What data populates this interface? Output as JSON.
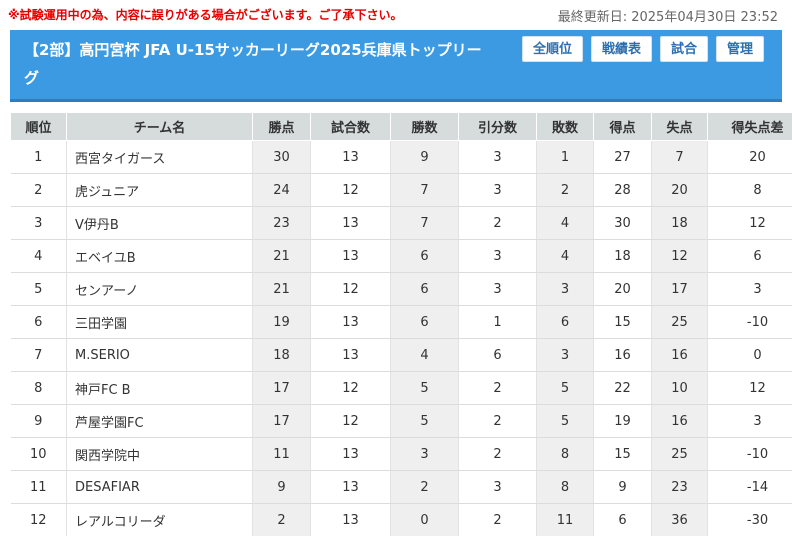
{
  "notice": "※試験運用中の為、内容に誤りがある場合がございます。ご了承下さい。",
  "last_updated": "最終更新日: 2025年04月30日 23:52",
  "header": {
    "title": "【2部】高円宮杯 JFA U-15サッカーリーグ2025兵庫県トップリーグ",
    "buttons": {
      "all": "全順位",
      "record": "戦績表",
      "match": "試合",
      "manage": "管理"
    }
  },
  "table": {
    "headers": [
      "順位",
      "チーム名",
      "勝点",
      "試合数",
      "勝数",
      "引分数",
      "敗数",
      "得点",
      "失点",
      "得失点差"
    ],
    "rows": [
      [
        "1",
        "西宮タイガース",
        "30",
        "13",
        "9",
        "3",
        "1",
        "27",
        "7",
        "20"
      ],
      [
        "2",
        "虎ジュニア",
        "24",
        "12",
        "7",
        "3",
        "2",
        "28",
        "20",
        "8"
      ],
      [
        "3",
        "V伊丹B",
        "23",
        "13",
        "7",
        "2",
        "4",
        "30",
        "18",
        "12"
      ],
      [
        "4",
        "エベイユB",
        "21",
        "13",
        "6",
        "3",
        "4",
        "18",
        "12",
        "6"
      ],
      [
        "5",
        "センアーノ",
        "21",
        "12",
        "6",
        "3",
        "3",
        "20",
        "17",
        "3"
      ],
      [
        "6",
        "三田学園",
        "19",
        "13",
        "6",
        "1",
        "6",
        "15",
        "25",
        "-10"
      ],
      [
        "7",
        "M.SERIO",
        "18",
        "13",
        "4",
        "6",
        "3",
        "16",
        "16",
        "0"
      ],
      [
        "8",
        "神戸FC B",
        "17",
        "12",
        "5",
        "2",
        "5",
        "22",
        "10",
        "12"
      ],
      [
        "9",
        "芦屋学園FC",
        "17",
        "12",
        "5",
        "2",
        "5",
        "19",
        "16",
        "3"
      ],
      [
        "10",
        "関西学院中",
        "11",
        "13",
        "3",
        "2",
        "8",
        "15",
        "25",
        "-10"
      ],
      [
        "11",
        "DESAFIAR",
        "9",
        "13",
        "2",
        "3",
        "8",
        "9",
        "23",
        "-14"
      ],
      [
        "12",
        "レアルコリーダ",
        "2",
        "13",
        "0",
        "2",
        "11",
        "6",
        "36",
        "-30"
      ]
    ]
  }
}
